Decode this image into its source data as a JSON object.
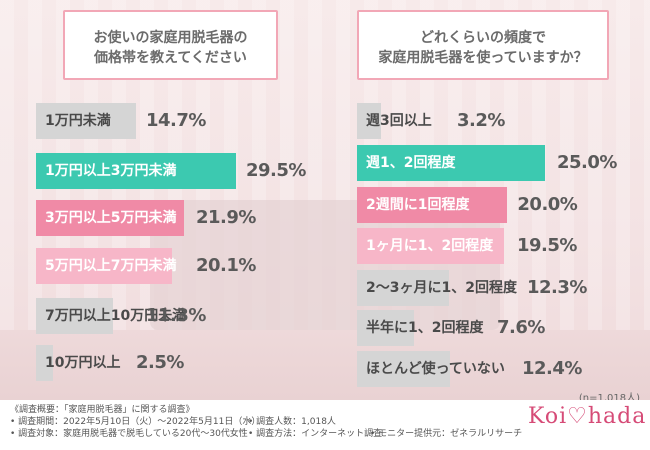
{
  "left_question": {
    "line1": "お使いの家庭用脱毛器の",
    "line2": "価格帯を教えてください"
  },
  "right_question": {
    "line1": "どれくらいの頻度で",
    "line2": "家庭用脱毛器を使っていますか？"
  },
  "chart_data": [
    {
      "type": "bar",
      "orientation": "horizontal",
      "categories": [
        "1万円未満",
        "1万円以上3万円未満",
        "3万円以上5万円未満",
        "5万円以上7万円未満",
        "7万円以上10万円未満",
        "10万円以上"
      ],
      "values": [
        14.7,
        29.5,
        21.9,
        20.1,
        11.3,
        2.5
      ],
      "value_labels": [
        "14.7%",
        "29.5%",
        "21.9%",
        "20.1%",
        "11.3%",
        "2.5%"
      ],
      "bar_colors": [
        "#d5d5d5",
        "#3cc9b0",
        "#f08aa6",
        "#f7b6c8",
        "#d5d5d5",
        "#d5d5d5"
      ],
      "label_colors": [
        "#4a4a4a",
        "#ffffff",
        "#ffffff",
        "#ffffff",
        "#4a4a4a",
        "#4a4a4a"
      ],
      "xlim": [
        0,
        29.5
      ]
    },
    {
      "type": "bar",
      "orientation": "horizontal",
      "categories": [
        "週3回以上",
        "週1、2回程度",
        "2週間に1回程度",
        "1ヶ月に1、2回程度",
        "2～3ヶ月に1、2回程度",
        "半年に1、2回程度",
        "ほとんど使っていない"
      ],
      "values": [
        3.2,
        25.0,
        20.0,
        19.5,
        12.3,
        7.6,
        12.4
      ],
      "value_labels": [
        "3.2%",
        "25.0%",
        "20.0%",
        "19.5%",
        "12.3%",
        "7.6%",
        "12.4%"
      ],
      "bar_colors": [
        "#d5d5d5",
        "#3cc9b0",
        "#f08aa6",
        "#f7b6c8",
        "#d5d5d5",
        "#d5d5d5",
        "#d5d5d5"
      ],
      "label_colors": [
        "#4a4a4a",
        "#ffffff",
        "#ffffff",
        "#ffffff",
        "#4a4a4a",
        "#4a4a4a",
        "#4a4a4a"
      ],
      "xlim": [
        0,
        25.0
      ]
    }
  ],
  "n_note": "(n=1,018人)",
  "footer": {
    "heading": "《調査概要：「家庭用脱毛器」に関する調査》",
    "period": "• 調査期間：2022年5月10日（火）～2022年5月11日（水）",
    "people": "• 調査人数：1,018人",
    "target": "• 調査対象：家庭用脱毛器で脱毛している20代～30代女性",
    "method": "• 調査方法：インターネット調査",
    "monitor": "• モニター提供元：ゼネラルリサーチ",
    "logo": "Koi♡hada"
  }
}
